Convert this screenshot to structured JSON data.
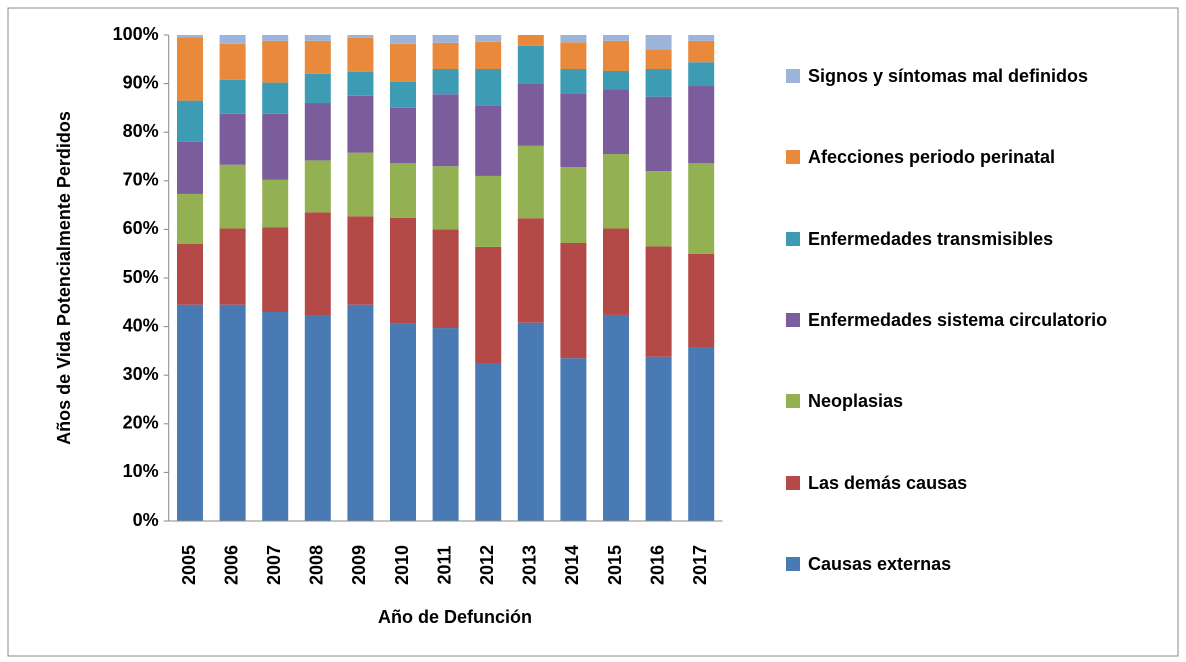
{
  "chart_data": {
    "type": "stacked_bar",
    "y_label": "Años de Vida Potencialmente Perdidos",
    "x_label": "Año de Defunción",
    "categories": [
      "2005",
      "2006",
      "2007",
      "2008",
      "2009",
      "2010",
      "2011",
      "2012",
      "2013",
      "2014",
      "2015",
      "2016",
      "2017"
    ],
    "series": [
      {
        "name": "Causas externas",
        "color": "#4a7ab4",
        "values": [
          44.5,
          44.5,
          43,
          42.2,
          44.5,
          40.6,
          39.7,
          32.4,
          40.8,
          33.5,
          42.4,
          33.8,
          35.8
        ]
      },
      {
        "name": "Las demás causas",
        "color": "#b44a47",
        "values": [
          12.5,
          15.7,
          17.4,
          21.3,
          18.2,
          21.8,
          20.3,
          24,
          21.5,
          23.7,
          17.8,
          22.7,
          19.2
        ]
      },
      {
        "name": "Neoplasias",
        "color": "#93b153",
        "values": [
          10.3,
          13.1,
          9.8,
          10.7,
          13.1,
          11.2,
          13,
          14.6,
          14.9,
          15.6,
          15.3,
          15.5,
          18.6
        ]
      },
      {
        "name": "Enfermedades sistema circulatorio",
        "color": "#7a5d9a",
        "values": [
          10.7,
          10.5,
          13.6,
          11.8,
          11.7,
          11.4,
          14.8,
          14.4,
          12.8,
          15.2,
          13.3,
          15.3,
          15.9
        ]
      },
      {
        "name": "Enfermedades transmisibles",
        "color": "#3d9bb4",
        "values": [
          8.5,
          7,
          6.4,
          6,
          4.9,
          5.4,
          5.2,
          7.6,
          7.8,
          5,
          3.8,
          5.7,
          4.9
        ]
      },
      {
        "name": "Afecciones periodo perinatal",
        "color": "#e8893b",
        "values": [
          13,
          7.4,
          8.6,
          6.8,
          7,
          7.8,
          5.4,
          5.6,
          2.2,
          5.5,
          6.2,
          4,
          4.4
        ]
      },
      {
        "name": "Signos y síntomas mal definidos",
        "color": "#9db4da",
        "values": [
          0.5,
          1.8,
          1.2,
          1.2,
          0.6,
          1.8,
          1.6,
          1.4,
          0,
          1.5,
          1.2,
          3,
          1.2
        ]
      }
    ],
    "ylim": [
      0,
      100
    ],
    "yticks": [
      {
        "value": 0,
        "label": "0%"
      },
      {
        "value": 10,
        "label": "10%"
      },
      {
        "value": 20,
        "label": "20%"
      },
      {
        "value": 30,
        "label": "30%"
      },
      {
        "value": 40,
        "label": "40%"
      },
      {
        "value": 50,
        "label": "50%"
      },
      {
        "value": 60,
        "label": "60%"
      },
      {
        "value": 70,
        "label": "70%"
      },
      {
        "value": 80,
        "label": "80%"
      },
      {
        "value": 90,
        "label": "90%"
      },
      {
        "value": 100,
        "label": "100%"
      }
    ],
    "legend": "right"
  }
}
